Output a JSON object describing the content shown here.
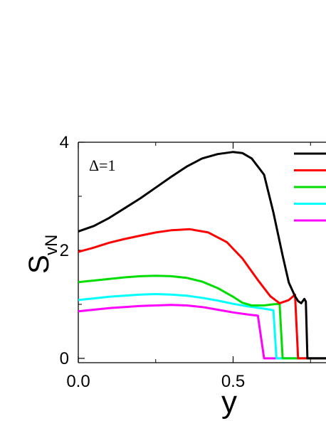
{
  "chart_data": {
    "type": "line",
    "annotation": "Δ=1",
    "xlabel": "y",
    "ylabel_main": "S",
    "ylabel_sub": "vN",
    "xlim": [
      0.0,
      0.8
    ],
    "ylim": [
      -0.08,
      4.0
    ],
    "x_ticks": [
      {
        "value": 0.0,
        "label": "0.0"
      },
      {
        "value": 0.5,
        "label": "0.5"
      }
    ],
    "y_ticks": [
      {
        "value": 0,
        "label": "0"
      },
      {
        "value": 2,
        "label": "2"
      },
      {
        "value": 4,
        "label": "4"
      }
    ],
    "x_minor_ticks": [
      0.25,
      0.75
    ],
    "y_minor_ticks": [
      1,
      3
    ],
    "grid": false,
    "legend": "top-right, entries cut off at image edge (line samples only)",
    "series": [
      {
        "color": "#000000",
        "points": [
          [
            0.0,
            2.35
          ],
          [
            0.05,
            2.45
          ],
          [
            0.1,
            2.6
          ],
          [
            0.15,
            2.78
          ],
          [
            0.2,
            2.96
          ],
          [
            0.25,
            3.16
          ],
          [
            0.3,
            3.36
          ],
          [
            0.35,
            3.55
          ],
          [
            0.4,
            3.7
          ],
          [
            0.45,
            3.78
          ],
          [
            0.5,
            3.82
          ],
          [
            0.53,
            3.8
          ],
          [
            0.56,
            3.7
          ],
          [
            0.6,
            3.4
          ],
          [
            0.63,
            2.7
          ],
          [
            0.66,
            1.9
          ],
          [
            0.68,
            1.4
          ],
          [
            0.7,
            1.15
          ],
          [
            0.71,
            1.06
          ],
          [
            0.72,
            1.02
          ],
          [
            0.73,
            1.1
          ],
          [
            0.735,
            1.05
          ],
          [
            0.74,
            0.0
          ],
          [
            0.8,
            0.0
          ]
        ]
      },
      {
        "color": "#ff0000",
        "points": [
          [
            0.0,
            1.97
          ],
          [
            0.05,
            2.05
          ],
          [
            0.1,
            2.14
          ],
          [
            0.15,
            2.21
          ],
          [
            0.2,
            2.27
          ],
          [
            0.25,
            2.33
          ],
          [
            0.3,
            2.37
          ],
          [
            0.36,
            2.39
          ],
          [
            0.42,
            2.33
          ],
          [
            0.48,
            2.15
          ],
          [
            0.53,
            1.85
          ],
          [
            0.58,
            1.45
          ],
          [
            0.62,
            1.15
          ],
          [
            0.65,
            1.02
          ],
          [
            0.68,
            1.08
          ],
          [
            0.7,
            1.18
          ],
          [
            0.71,
            0.0
          ],
          [
            0.8,
            0.0
          ]
        ]
      },
      {
        "color": "#00dd00",
        "points": [
          [
            0.0,
            1.41
          ],
          [
            0.05,
            1.44
          ],
          [
            0.1,
            1.47
          ],
          [
            0.15,
            1.5
          ],
          [
            0.2,
            1.52
          ],
          [
            0.25,
            1.53
          ],
          [
            0.3,
            1.52
          ],
          [
            0.35,
            1.49
          ],
          [
            0.4,
            1.42
          ],
          [
            0.45,
            1.3
          ],
          [
            0.5,
            1.14
          ],
          [
            0.53,
            1.03
          ],
          [
            0.56,
            0.98
          ],
          [
            0.6,
            0.98
          ],
          [
            0.63,
            1.0
          ],
          [
            0.65,
            1.01
          ],
          [
            0.66,
            0.0
          ],
          [
            0.8,
            0.0
          ]
        ]
      },
      {
        "color": "#00ffff",
        "points": [
          [
            0.0,
            1.08
          ],
          [
            0.05,
            1.11
          ],
          [
            0.1,
            1.14
          ],
          [
            0.15,
            1.16
          ],
          [
            0.2,
            1.18
          ],
          [
            0.25,
            1.19
          ],
          [
            0.3,
            1.18
          ],
          [
            0.35,
            1.16
          ],
          [
            0.4,
            1.12
          ],
          [
            0.45,
            1.07
          ],
          [
            0.5,
            1.01
          ],
          [
            0.55,
            0.96
          ],
          [
            0.6,
            0.92
          ],
          [
            0.63,
            0.89
          ],
          [
            0.64,
            0.0
          ],
          [
            0.8,
            0.0
          ]
        ]
      },
      {
        "color": "#ff00ff",
        "points": [
          [
            0.0,
            0.87
          ],
          [
            0.05,
            0.9
          ],
          [
            0.1,
            0.93
          ],
          [
            0.15,
            0.95
          ],
          [
            0.2,
            0.97
          ],
          [
            0.25,
            0.98
          ],
          [
            0.3,
            0.99
          ],
          [
            0.35,
            0.98
          ],
          [
            0.4,
            0.95
          ],
          [
            0.45,
            0.9
          ],
          [
            0.5,
            0.85
          ],
          [
            0.55,
            0.81
          ],
          [
            0.58,
            0.79
          ],
          [
            0.6,
            0.0
          ],
          [
            0.8,
            0.0
          ]
        ]
      }
    ]
  }
}
